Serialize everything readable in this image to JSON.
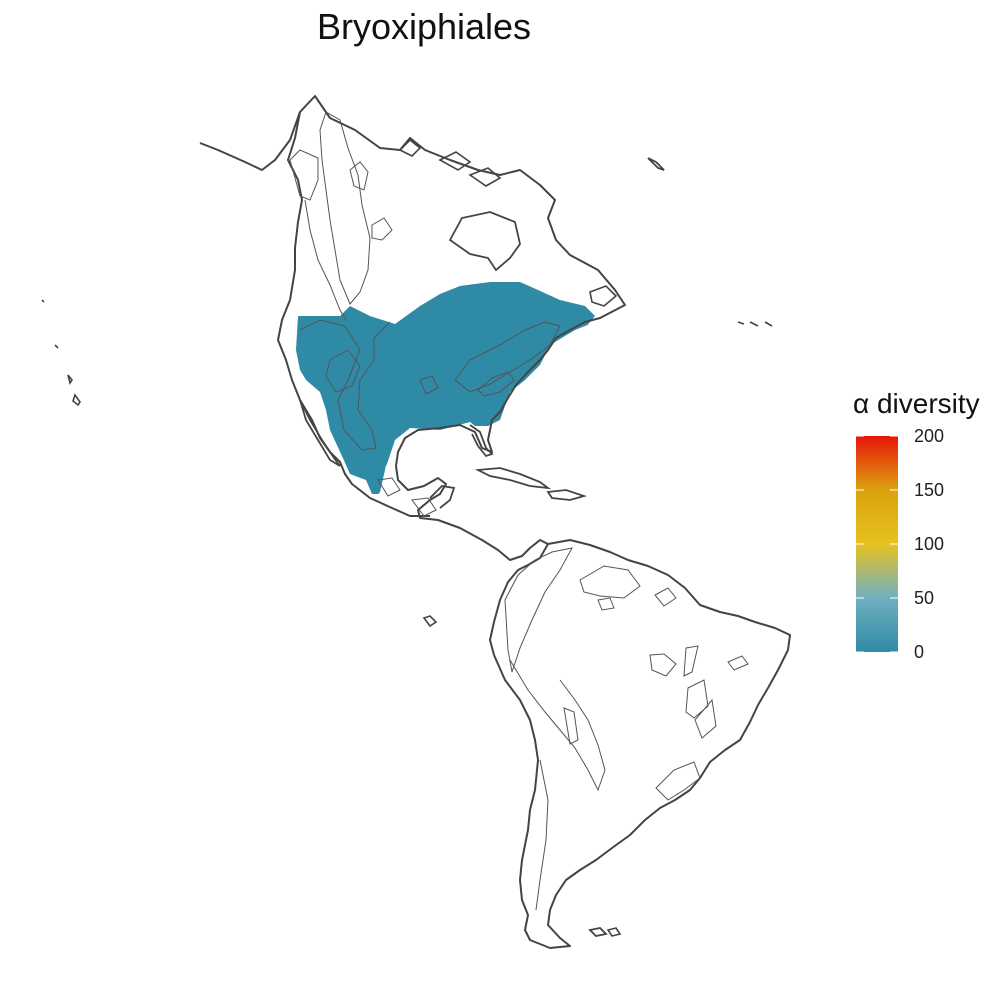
{
  "map": {
    "title": "Bryoxiphiales",
    "region": "Americas",
    "land_outline_color": "#444444",
    "biome_outline_color": "#555555",
    "background_color": "#ffffff",
    "presence_cell_color": "#2f8aa5"
  },
  "legend": {
    "title": "α diversity",
    "ticks": [
      "200",
      "150",
      "100",
      "50",
      "0"
    ],
    "tick_values": [
      200,
      150,
      100,
      50,
      0
    ],
    "min": 0,
    "max": 200,
    "gradient_stops": [
      {
        "value": 0,
        "color": "#2f8aa5"
      },
      {
        "value": 50,
        "color": "#6fb0c0"
      },
      {
        "value": 100,
        "color": "#e6c21f"
      },
      {
        "value": 150,
        "color": "#dba20f"
      },
      {
        "value": 200,
        "color": "#e8150a"
      }
    ]
  }
}
